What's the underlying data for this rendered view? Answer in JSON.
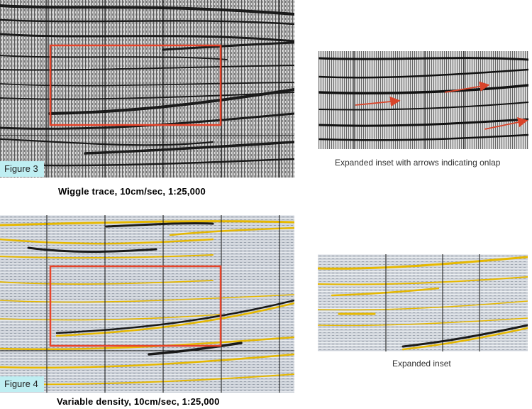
{
  "figure3": {
    "label": "Figure 3",
    "caption": "Wiggle trace, 10cm/sec, 1:25,000",
    "inset_caption": "Expanded inset with arrows indicating onlap"
  },
  "figure4": {
    "label": "Figure 4",
    "caption": "Variable density, 10cm/sec, 1:25,000",
    "inset_caption": "Expanded inset"
  },
  "colors": {
    "highlight_box": "#e8442a",
    "onlap_arrow": "#d9442a",
    "figure_label_bg": "#bfeef2",
    "density_peak": "#e6b800"
  },
  "icons": [
    "onlap-arrow-icon"
  ]
}
